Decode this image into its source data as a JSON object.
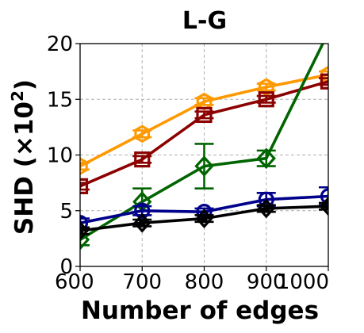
{
  "chart_data": {
    "type": "line",
    "title": "L-G",
    "xlabel": "Number of edges",
    "ylabel": "SHD (×10",
    "ylabel_sup": "2",
    "ylabel_close": ")",
    "xlim": [
      600,
      1000
    ],
    "ylim": [
      0,
      20
    ],
    "grid": true,
    "x": [
      600,
      700,
      800,
      900,
      1000
    ],
    "x_ticks": [
      "600",
      "700",
      "800",
      "900",
      "1000"
    ],
    "y_ticks": [
      "0",
      "5",
      "10",
      "15",
      "20"
    ],
    "series": [
      {
        "color": "#ff9900",
        "marker": "hexagon",
        "values": [
          9.0,
          11.9,
          14.8,
          16.1,
          17.2
        ],
        "err": [
          0.3,
          0.3,
          0.3,
          0.3,
          0.3
        ]
      },
      {
        "color": "#8b0000",
        "marker": "square",
        "values": [
          7.2,
          9.6,
          13.6,
          15.0,
          16.6
        ],
        "err": [
          0.3,
          0.3,
          0.3,
          0.3,
          0.3
        ]
      },
      {
        "color": "#006400",
        "marker": "diamond",
        "values": [
          2.4,
          5.8,
          9.0,
          9.7,
          21.0
        ],
        "err": [
          0.5,
          1.2,
          2.0,
          0.7,
          0
        ]
      },
      {
        "color": "#00008b",
        "marker": "circle",
        "values": [
          3.9,
          5.0,
          4.9,
          6.0,
          6.3
        ],
        "err": [
          0.4,
          0.4,
          0.3,
          0.6,
          0.8
        ]
      },
      {
        "color": "#000000",
        "marker": "x-diamond",
        "values": [
          3.2,
          3.9,
          4.3,
          5.2,
          5.4
        ],
        "err": [
          0.3,
          0.3,
          0.3,
          0.3,
          0.3
        ]
      }
    ]
  }
}
